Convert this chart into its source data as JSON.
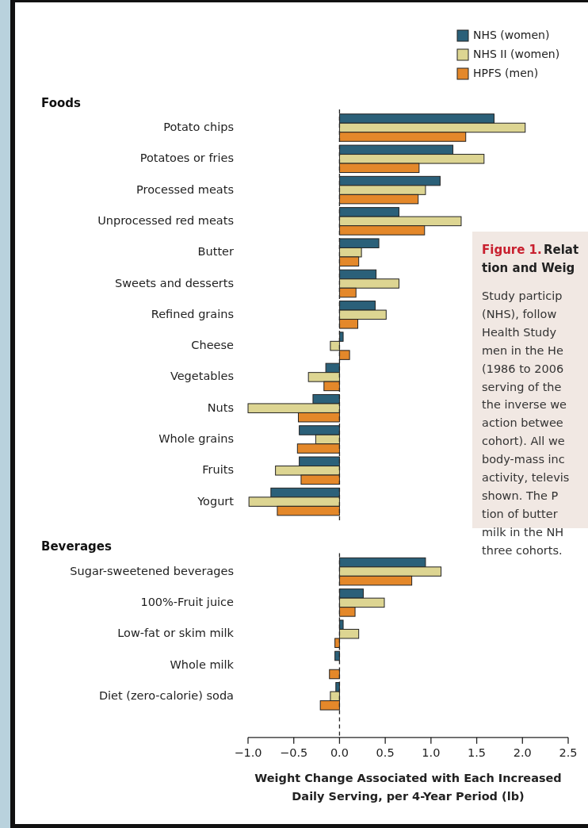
{
  "chart_data": [
    {
      "type": "bar",
      "orientation": "horizontal",
      "title": "Foods",
      "categories": [
        "Potato chips",
        "Potatoes or fries",
        "Processed meats",
        "Unprocessed red meats",
        "Butter",
        "Sweets and desserts",
        "Refined grains",
        "Cheese",
        "Vegetables",
        "Nuts",
        "Whole grains",
        "Fruits",
        "Yogurt"
      ],
      "series": [
        {
          "name": "NHS (women)",
          "color": "#2b6079",
          "values": [
            1.69,
            1.24,
            1.1,
            0.65,
            0.43,
            0.4,
            0.39,
            0.04,
            -0.15,
            -0.29,
            -0.44,
            -0.44,
            -0.75
          ]
        },
        {
          "name": "NHS II (women)",
          "color": "#ddd592",
          "values": [
            2.03,
            1.58,
            0.94,
            1.33,
            0.24,
            0.65,
            0.51,
            -0.1,
            -0.34,
            -1.0,
            -0.26,
            -0.7,
            -0.99
          ]
        },
        {
          "name": "HPFS (men)",
          "color": "#e4882a",
          "values": [
            1.38,
            0.87,
            0.86,
            0.93,
            0.21,
            0.18,
            0.2,
            0.11,
            -0.17,
            -0.45,
            -0.46,
            -0.42,
            -0.68
          ]
        }
      ],
      "xlim": [
        -1.0,
        2.5
      ],
      "tick_labels": "y",
      "ref_lines": [
        {
          "axis": "x",
          "value": 0,
          "line_style": "dashed",
          "color": "#222222"
        }
      ],
      "legend": "top right",
      "grid": false,
      "annotations": [
        "Figure 1.",
        "Relat\ntion and Weig",
        "Study particip\n(NHS), follow\nHealth Study \nmen in the He\n(1986 to 2006\nserving of the\nthe inverse we\naction betwee\ncohort). All we\nbody-mass inc\nactivity, televis\nshown. The P\ntion of butter\nmilk in the NH\nthree cohorts."
      ]
    },
    {
      "type": "bar",
      "orientation": "horizontal",
      "title": "Beverages",
      "categories": [
        "Sugar-sweetened beverages",
        "100%-Fruit juice",
        "Low-fat or skim milk",
        "Whole milk",
        "Diet (zero-calorie) soda"
      ],
      "series": [
        {
          "color": "#2b6079",
          "values": [
            0.94,
            0.26,
            0.04,
            -0.05,
            -0.04
          ]
        },
        {
          "color": "#ddd592",
          "values": [
            1.11,
            0.49,
            0.21,
            null,
            -0.1
          ]
        },
        {
          "color": "#e4882a",
          "values": [
            0.79,
            0.17,
            -0.05,
            -0.11,
            -0.21
          ]
        }
      ],
      "xlim": [
        -1.0,
        2.5
      ],
      "xticks": [
        {
          "value": -1,
          "label": "−1.0"
        },
        {
          "value": -0.5,
          "label": "−0.5"
        },
        {
          "value": 0,
          "label": "0.0"
        },
        {
          "value": 0.5,
          "label": "0.5"
        },
        {
          "value": 1,
          "label": "1.0"
        },
        {
          "value": 1.5,
          "label": "1.5"
        },
        {
          "value": 2,
          "label": "2.0"
        },
        {
          "value": 2.5,
          "label": "2.5"
        }
      ],
      "xlabel": "Weight Change Associated with Each Increased\nDaily Serving, per 4-Year Period (lb)",
      "ref_lines": [
        {
          "axis": "x",
          "value": 0,
          "line_style": "dashed",
          "color": "#222222"
        }
      ],
      "grid": false
    }
  ]
}
